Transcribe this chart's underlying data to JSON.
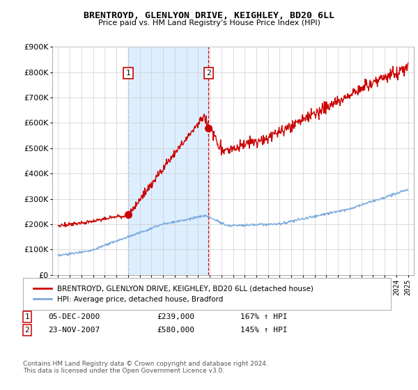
{
  "title": "BRENTROYD, GLENLYON DRIVE, KEIGHLEY, BD20 6LL",
  "subtitle": "Price paid vs. HM Land Registry's House Price Index (HPI)",
  "legend_line1": "BRENTROYD, GLENLYON DRIVE, KEIGHLEY, BD20 6LL (detached house)",
  "legend_line2": "HPI: Average price, detached house, Bradford",
  "sale1_date": "05-DEC-2000",
  "sale1_price": "£239,000",
  "sale1_hpi": "167% ↑ HPI",
  "sale2_date": "23-NOV-2007",
  "sale2_price": "£580,000",
  "sale2_hpi": "145% ↑ HPI",
  "footer": "Contains HM Land Registry data © Crown copyright and database right 2024.\nThis data is licensed under the Open Government Licence v3.0.",
  "sale1_x": 2001.0,
  "sale1_y": 239000,
  "sale2_x": 2007.9,
  "sale2_y": 580000,
  "house_color": "#cc0000",
  "hpi_color": "#7aaadd",
  "marker_color": "#cc0000",
  "vline1_color": "#aaaacc",
  "vline2_color": "#cc0000",
  "shade_color": "#ddeeff",
  "background_color": "#ffffff",
  "grid_color": "#cccccc",
  "ylim": [
    0,
    900000
  ],
  "xlim": [
    1994.5,
    2025.5
  ]
}
